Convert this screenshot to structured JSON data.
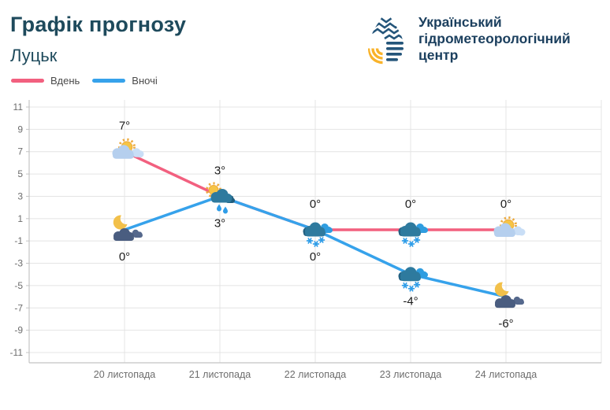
{
  "header": {
    "title": "Графік прогнозу",
    "subtitle": "Луцьк"
  },
  "logo": {
    "line1": "Український",
    "line2": "гідрометеорологічний",
    "line3": "центр"
  },
  "colors": {
    "title_text": "#1e4a5c",
    "logo_text": "#1b3f5e",
    "logo_navy": "#24557a",
    "logo_yellow": "#f9b32a",
    "day_line": "#f2607f",
    "night_line": "#36a2eb",
    "grid": "#e4e4e4",
    "axis": "#c4c4c4",
    "tick_text": "#6d6d6d",
    "temp_text": "#1c1c1c"
  },
  "chart_data": {
    "type": "line",
    "title": "Графік прогнозу",
    "subtitle": "Луцьк",
    "x": [
      "20 листопада",
      "21 листопада",
      "22 листопада",
      "23 листопада",
      "24 листопада"
    ],
    "yticks": [
      11,
      9,
      7,
      5,
      3,
      1,
      -1,
      -3,
      -5,
      -7,
      -9,
      -11
    ],
    "ylim": [
      -12,
      11.6
    ],
    "xlabel": "",
    "ylabel": "",
    "grid": true,
    "legend_position": "top-left",
    "series": [
      {
        "name": "Вдень",
        "color": "#f2607f",
        "values": [
          7,
          3,
          0,
          0,
          0
        ],
        "point_labels": [
          "7°",
          "3°",
          "0°",
          "0°",
          "0°"
        ],
        "icons": [
          "sun-cloud",
          "sun-rain-cloud",
          "snow-cloud",
          "snow-cloud",
          "sun-cloud"
        ]
      },
      {
        "name": "Вночі",
        "color": "#36a2eb",
        "values": [
          0,
          3,
          0,
          -4,
          -6
        ],
        "point_labels": [
          "0°",
          "3°",
          "0°",
          "-4°",
          "-6°"
        ],
        "icons": [
          "moon-cloud",
          "",
          "",
          "snow-cloud",
          "moon-cloud"
        ]
      }
    ]
  }
}
